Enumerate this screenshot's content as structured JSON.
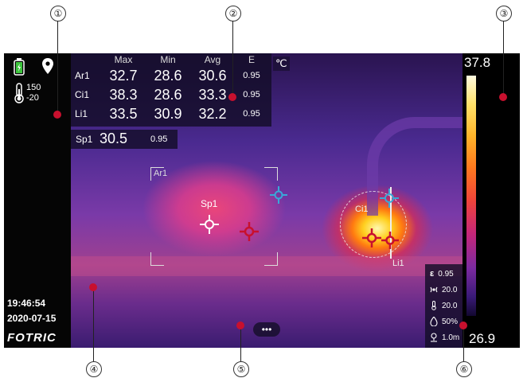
{
  "callouts": [
    "①",
    "②",
    "③",
    "④",
    "⑤",
    "⑥"
  ],
  "unit": "℃",
  "status": {
    "temp_range_high": "150",
    "temp_range_low": "-20"
  },
  "measure_table": {
    "headers": [
      "Max",
      "Min",
      "Avg",
      "E"
    ],
    "rows": [
      {
        "label": "Ar1",
        "max": "32.7",
        "min": "28.6",
        "avg": "30.6",
        "e": "0.95"
      },
      {
        "label": "Ci1",
        "max": "38.3",
        "min": "28.6",
        "avg": "33.3",
        "e": "0.95"
      },
      {
        "label": "Li1",
        "max": "33.5",
        "min": "30.9",
        "avg": "32.2",
        "e": "0.95"
      }
    ]
  },
  "spot": {
    "label": "Sp1",
    "value": "30.5",
    "e": "0.95"
  },
  "overlay_labels": {
    "area": "Ar1",
    "spot": "Sp1",
    "circle": "Ci1",
    "line": "Li1"
  },
  "palette": {
    "max": "37.8",
    "min": "26.9"
  },
  "params": {
    "emissivity_symbol": "ε",
    "emissivity": "0.95",
    "reflected_temp": "20.0",
    "ambient_temp": "20.0",
    "humidity": "50%",
    "distance": "1.0m"
  },
  "datetime": {
    "time": "19:46:54",
    "date": "2020-07-15"
  },
  "brand": "FOTRIC",
  "more_button": "•••",
  "colors": {
    "callout_dot": "#c8102e",
    "marker_red": "#c8102e",
    "marker_cyan": "#3aa8d8"
  }
}
